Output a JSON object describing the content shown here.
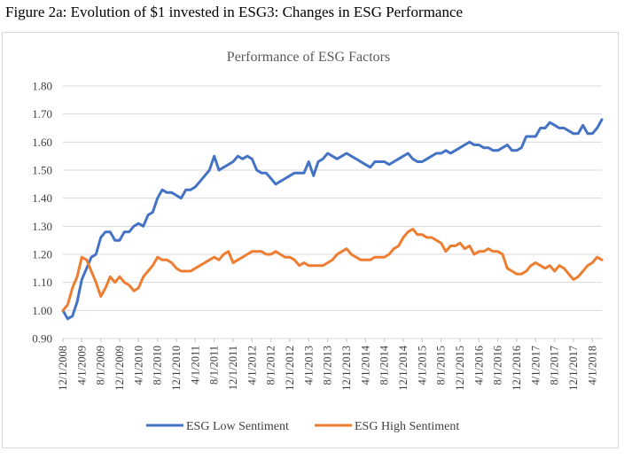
{
  "figure_title": "Figure 2a: Evolution of $1 invested in ESG3: Changes in ESG Performance",
  "chart_data": {
    "type": "line",
    "title": "Performance of ESG Factors",
    "xlabel": "",
    "ylabel": "",
    "ylim": [
      0.9,
      1.8
    ],
    "yticks": [
      "1.80",
      "1.70",
      "1.60",
      "1.50",
      "1.40",
      "1.30",
      "1.20",
      "1.10",
      "1.00",
      "0.90"
    ],
    "grid": true,
    "legend_position": "bottom",
    "x_tick_labels": [
      "12/1/2008",
      "4/1/2009",
      "8/1/2009",
      "12/1/2009",
      "4/1/2010",
      "8/1/2010",
      "12/1/2010",
      "4/1/2011",
      "8/1/2011",
      "12/1/2011",
      "4/1/2012",
      "8/1/2012",
      "12/1/2012",
      "4/1/2013",
      "8/1/2013",
      "12/1/2013",
      "4/1/2014",
      "8/1/2014",
      "12/1/2014",
      "4/1/2015",
      "8/1/2015",
      "12/1/2015",
      "4/1/2016",
      "8/1/2016",
      "12/1/2016",
      "4/1/2017",
      "8/1/2017",
      "12/1/2017",
      "4/1/2018"
    ],
    "x_start": "12/1/2008",
    "series": [
      {
        "name": "ESG Low Sentiment",
        "color": "#4472c4",
        "values": [
          1.0,
          0.97,
          0.98,
          1.03,
          1.11,
          1.15,
          1.19,
          1.2,
          1.26,
          1.28,
          1.28,
          1.25,
          1.25,
          1.28,
          1.28,
          1.3,
          1.31,
          1.3,
          1.34,
          1.35,
          1.4,
          1.43,
          1.42,
          1.42,
          1.41,
          1.4,
          1.43,
          1.43,
          1.44,
          1.46,
          1.48,
          1.5,
          1.55,
          1.5,
          1.51,
          1.52,
          1.53,
          1.55,
          1.54,
          1.55,
          1.54,
          1.5,
          1.49,
          1.49,
          1.47,
          1.45,
          1.46,
          1.47,
          1.48,
          1.49,
          1.49,
          1.49,
          1.53,
          1.48,
          1.53,
          1.54,
          1.56,
          1.55,
          1.54,
          1.55,
          1.56,
          1.55,
          1.54,
          1.53,
          1.52,
          1.51,
          1.53,
          1.53,
          1.53,
          1.52,
          1.53,
          1.54,
          1.55,
          1.56,
          1.54,
          1.53,
          1.53,
          1.54,
          1.55,
          1.56,
          1.56,
          1.57,
          1.56,
          1.57,
          1.58,
          1.59,
          1.6,
          1.59,
          1.59,
          1.58,
          1.58,
          1.57,
          1.57,
          1.58,
          1.59,
          1.57,
          1.57,
          1.58,
          1.62,
          1.62,
          1.62,
          1.65,
          1.65,
          1.67,
          1.66,
          1.65,
          1.65,
          1.64,
          1.63,
          1.63,
          1.66,
          1.63,
          1.63,
          1.65,
          1.68
        ]
      },
      {
        "name": "ESG High Sentiment",
        "color": "#ed7d31",
        "values": [
          1.0,
          1.02,
          1.08,
          1.12,
          1.19,
          1.18,
          1.14,
          1.1,
          1.05,
          1.08,
          1.12,
          1.1,
          1.12,
          1.1,
          1.09,
          1.07,
          1.08,
          1.12,
          1.14,
          1.16,
          1.19,
          1.18,
          1.18,
          1.17,
          1.15,
          1.14,
          1.14,
          1.14,
          1.15,
          1.16,
          1.17,
          1.18,
          1.19,
          1.18,
          1.2,
          1.21,
          1.17,
          1.18,
          1.19,
          1.2,
          1.21,
          1.21,
          1.21,
          1.2,
          1.2,
          1.21,
          1.2,
          1.19,
          1.19,
          1.18,
          1.16,
          1.17,
          1.16,
          1.16,
          1.16,
          1.16,
          1.17,
          1.18,
          1.2,
          1.21,
          1.22,
          1.2,
          1.19,
          1.18,
          1.18,
          1.18,
          1.19,
          1.19,
          1.19,
          1.2,
          1.22,
          1.23,
          1.26,
          1.28,
          1.29,
          1.27,
          1.27,
          1.26,
          1.26,
          1.25,
          1.24,
          1.21,
          1.23,
          1.23,
          1.24,
          1.22,
          1.23,
          1.2,
          1.21,
          1.21,
          1.22,
          1.21,
          1.21,
          1.2,
          1.15,
          1.14,
          1.13,
          1.13,
          1.14,
          1.16,
          1.17,
          1.16,
          1.15,
          1.16,
          1.14,
          1.16,
          1.15,
          1.13,
          1.11,
          1.12,
          1.14,
          1.16,
          1.17,
          1.19,
          1.18
        ]
      }
    ]
  }
}
